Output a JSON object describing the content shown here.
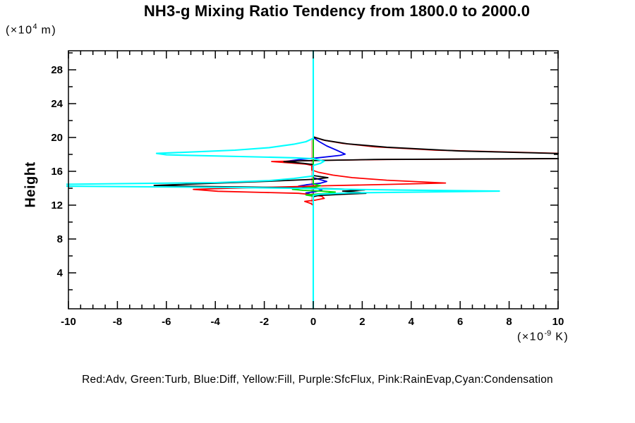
{
  "chart_data": {
    "type": "line",
    "title": "NH3-g Mixing Ratio Tendency from 1800.0 to 2000.0",
    "ylabel": "Height",
    "xlabel": "",
    "y_unit": {
      "prefix": "(×10",
      "sup": "4",
      "suffix": " m)"
    },
    "x_unit": {
      "prefix": "(×10",
      "sup": "-9",
      "suffix": " K)"
    },
    "xlim": [
      -10,
      10
    ],
    "ylim": [
      0,
      30
    ],
    "x_ticks": [
      -10,
      -8,
      -6,
      -4,
      -2,
      0,
      2,
      4,
      6,
      8,
      10
    ],
    "x_tick_labels": [
      "-10",
      "-8",
      "-6",
      "-4",
      "-2",
      "0",
      "2",
      "4",
      "6",
      "8",
      "10"
    ],
    "x_minor_step": 0.5,
    "y_ticks": [
      4,
      8,
      12,
      16,
      20,
      24,
      28
    ],
    "y_tick_labels": [
      "4",
      "8",
      "12",
      "16",
      "20",
      "24",
      "28"
    ],
    "y_minor_step": 2,
    "grid": "off",
    "legend_position": "bottom-center",
    "legend_text": "Red:Adv, Green:Turb, Blue:Diff, Yellow:Fill, Purple:SfcFlux, Pink:RainEvap,Cyan:Condensation",
    "orientation": "vertical profile: x = tendency (×10⁻⁹ K), y = height (×10⁴ m); values clipped at axis box",
    "series": [
      {
        "name": "Fill",
        "color_name": "yellow",
        "color": "#ffff00",
        "width": 1.8,
        "points": [
          [
            0,
            30.3
          ],
          [
            0,
            -0.3
          ]
        ]
      },
      {
        "name": "SfcFlux",
        "color_name": "purple",
        "color": "#aa00aa",
        "width": 1.8,
        "points": [
          [
            0,
            30.3
          ],
          [
            0,
            -0.3
          ]
        ]
      },
      {
        "name": "RainEvap",
        "color_name": "pink",
        "color": "#ffaaaa",
        "width": 1.8,
        "points": [
          [
            0,
            30.3
          ],
          [
            0,
            20.0
          ],
          [
            -0.06,
            19.7
          ],
          [
            -0.06,
            12.2
          ],
          [
            0,
            11.9
          ],
          [
            0,
            -0.3
          ]
        ]
      },
      {
        "name": "Diff",
        "color_name": "blue",
        "color": "#0000ee",
        "width": 1.8,
        "points": [
          [
            0,
            30.3
          ],
          [
            0,
            20.0
          ],
          [
            0.25,
            19.5
          ],
          [
            0.55,
            19.0
          ],
          [
            0.95,
            18.5
          ],
          [
            1.3,
            18.03
          ],
          [
            1.1,
            17.88
          ],
          [
            0.2,
            17.6
          ],
          [
            -0.6,
            17.38
          ],
          [
            -1.1,
            17.18
          ],
          [
            -0.5,
            16.95
          ],
          [
            -0.1,
            16.75
          ],
          [
            0,
            16.6
          ],
          [
            0,
            15.25
          ],
          [
            0.3,
            15.0
          ],
          [
            0.55,
            14.8
          ],
          [
            0.3,
            14.6
          ],
          [
            -0.3,
            14.4
          ],
          [
            -0.6,
            14.25
          ],
          [
            -0.3,
            14.1
          ],
          [
            0.2,
            13.95
          ],
          [
            0.35,
            13.8
          ],
          [
            0.1,
            13.6
          ],
          [
            -0.3,
            13.45
          ],
          [
            -0.15,
            13.3
          ],
          [
            0,
            13.15
          ],
          [
            0,
            -0.3
          ]
        ]
      },
      {
        "name": "Adv",
        "color_name": "red",
        "color": "#ff0000",
        "width": 1.8,
        "points": [
          [
            0,
            30.3
          ],
          [
            0,
            20.1
          ],
          [
            0.4,
            19.7
          ],
          [
            1.2,
            19.3
          ],
          [
            2.5,
            18.9
          ],
          [
            5,
            18.5
          ],
          [
            10.8,
            18.07
          ],
          [
            10.8,
            17.5
          ],
          [
            3,
            17.4
          ],
          [
            0.5,
            17.3
          ],
          [
            -1.7,
            17.16
          ],
          [
            -0.9,
            16.98
          ],
          [
            -0.3,
            16.85
          ],
          [
            -0.06,
            16.7
          ],
          [
            -0.06,
            16.15
          ],
          [
            0.2,
            15.9
          ],
          [
            0.8,
            15.55
          ],
          [
            1.6,
            15.25
          ],
          [
            3,
            14.95
          ],
          [
            5.4,
            14.62
          ],
          [
            3,
            14.45
          ],
          [
            0.6,
            14.3
          ],
          [
            -1.2,
            14.15
          ],
          [
            -3.4,
            14.0
          ],
          [
            -4.9,
            13.87
          ],
          [
            -3.9,
            13.64
          ],
          [
            -2,
            13.5
          ],
          [
            -0.6,
            13.4
          ],
          [
            -0.1,
            13.25
          ],
          [
            0.35,
            13.05
          ],
          [
            0.45,
            12.8
          ],
          [
            0.1,
            12.6
          ],
          [
            -0.35,
            12.45
          ],
          [
            -0.1,
            12.2
          ],
          [
            0,
            12.0
          ],
          [
            0,
            -0.3
          ]
        ]
      },
      {
        "name": "",
        "color_name": "black",
        "color": "#000000",
        "width": 1.8,
        "points": [
          [
            0,
            30.3
          ],
          [
            0,
            20.05
          ],
          [
            0.5,
            19.65
          ],
          [
            1.4,
            19.25
          ],
          [
            3,
            18.85
          ],
          [
            6,
            18.4
          ],
          [
            10.8,
            18.05
          ],
          [
            10.8,
            17.52
          ],
          [
            2.5,
            17.4
          ],
          [
            -0.4,
            17.25
          ],
          [
            -1.2,
            17.14
          ],
          [
            -0.4,
            16.95
          ],
          [
            0,
            16.8
          ],
          [
            0,
            15.5
          ],
          [
            0.6,
            15.25
          ],
          [
            0,
            15.05
          ],
          [
            -2,
            14.8
          ],
          [
            -4.4,
            14.55
          ],
          [
            -6.5,
            14.33
          ],
          [
            -5.5,
            14.25
          ],
          [
            -2.5,
            14.13
          ],
          [
            -0.5,
            14.03
          ],
          [
            0.8,
            13.93
          ],
          [
            2.1,
            13.8
          ],
          [
            1.2,
            13.66
          ],
          [
            1.8,
            13.53
          ],
          [
            2.15,
            13.4
          ],
          [
            1.2,
            13.28
          ],
          [
            0.2,
            13.13
          ],
          [
            0,
            13.0
          ],
          [
            0,
            -0.3
          ]
        ]
      },
      {
        "name": "Turb",
        "color_name": "green",
        "color": "#00dd00",
        "width": 1.8,
        "points": [
          [
            0,
            30.3
          ],
          [
            0,
            14.5
          ],
          [
            0.3,
            14.3
          ],
          [
            0.1,
            14.15
          ],
          [
            -0.5,
            14.0
          ],
          [
            -0.85,
            13.87
          ],
          [
            -0.4,
            13.75
          ],
          [
            0.4,
            13.65
          ],
          [
            0.9,
            13.55
          ],
          [
            0.6,
            13.42
          ],
          [
            0.1,
            13.3
          ],
          [
            -0.3,
            13.2
          ],
          [
            0,
            13.05
          ],
          [
            0,
            -0.3
          ]
        ]
      },
      {
        "name": "Condensation",
        "color_name": "cyan",
        "color": "#00ffff",
        "width": 2.1,
        "points": [
          [
            0,
            30.3
          ],
          [
            0,
            19.9
          ],
          [
            -0.3,
            19.5
          ],
          [
            -0.8,
            19.2
          ],
          [
            -1.8,
            18.8
          ],
          [
            -3.2,
            18.5
          ],
          [
            -6.4,
            18.12
          ],
          [
            -6.0,
            17.95
          ],
          [
            -3,
            17.75
          ],
          [
            -0.8,
            17.6
          ],
          [
            0,
            17.5
          ],
          [
            0.45,
            17.2
          ],
          [
            0.3,
            16.95
          ],
          [
            0,
            16.7
          ],
          [
            0,
            15.45
          ],
          [
            -0.8,
            15.15
          ],
          [
            -1.8,
            14.9
          ],
          [
            -4,
            14.67
          ],
          [
            -10.9,
            14.44
          ],
          [
            -10.9,
            14.27
          ],
          [
            -3.5,
            14.1
          ],
          [
            -0.5,
            13.98
          ],
          [
            0.8,
            13.9
          ],
          [
            3.5,
            13.78
          ],
          [
            7.6,
            13.66
          ],
          [
            5.5,
            13.58
          ],
          [
            1.5,
            13.45
          ],
          [
            0.3,
            13.3
          ],
          [
            0,
            13.15
          ],
          [
            0,
            -0.3
          ]
        ]
      }
    ]
  }
}
